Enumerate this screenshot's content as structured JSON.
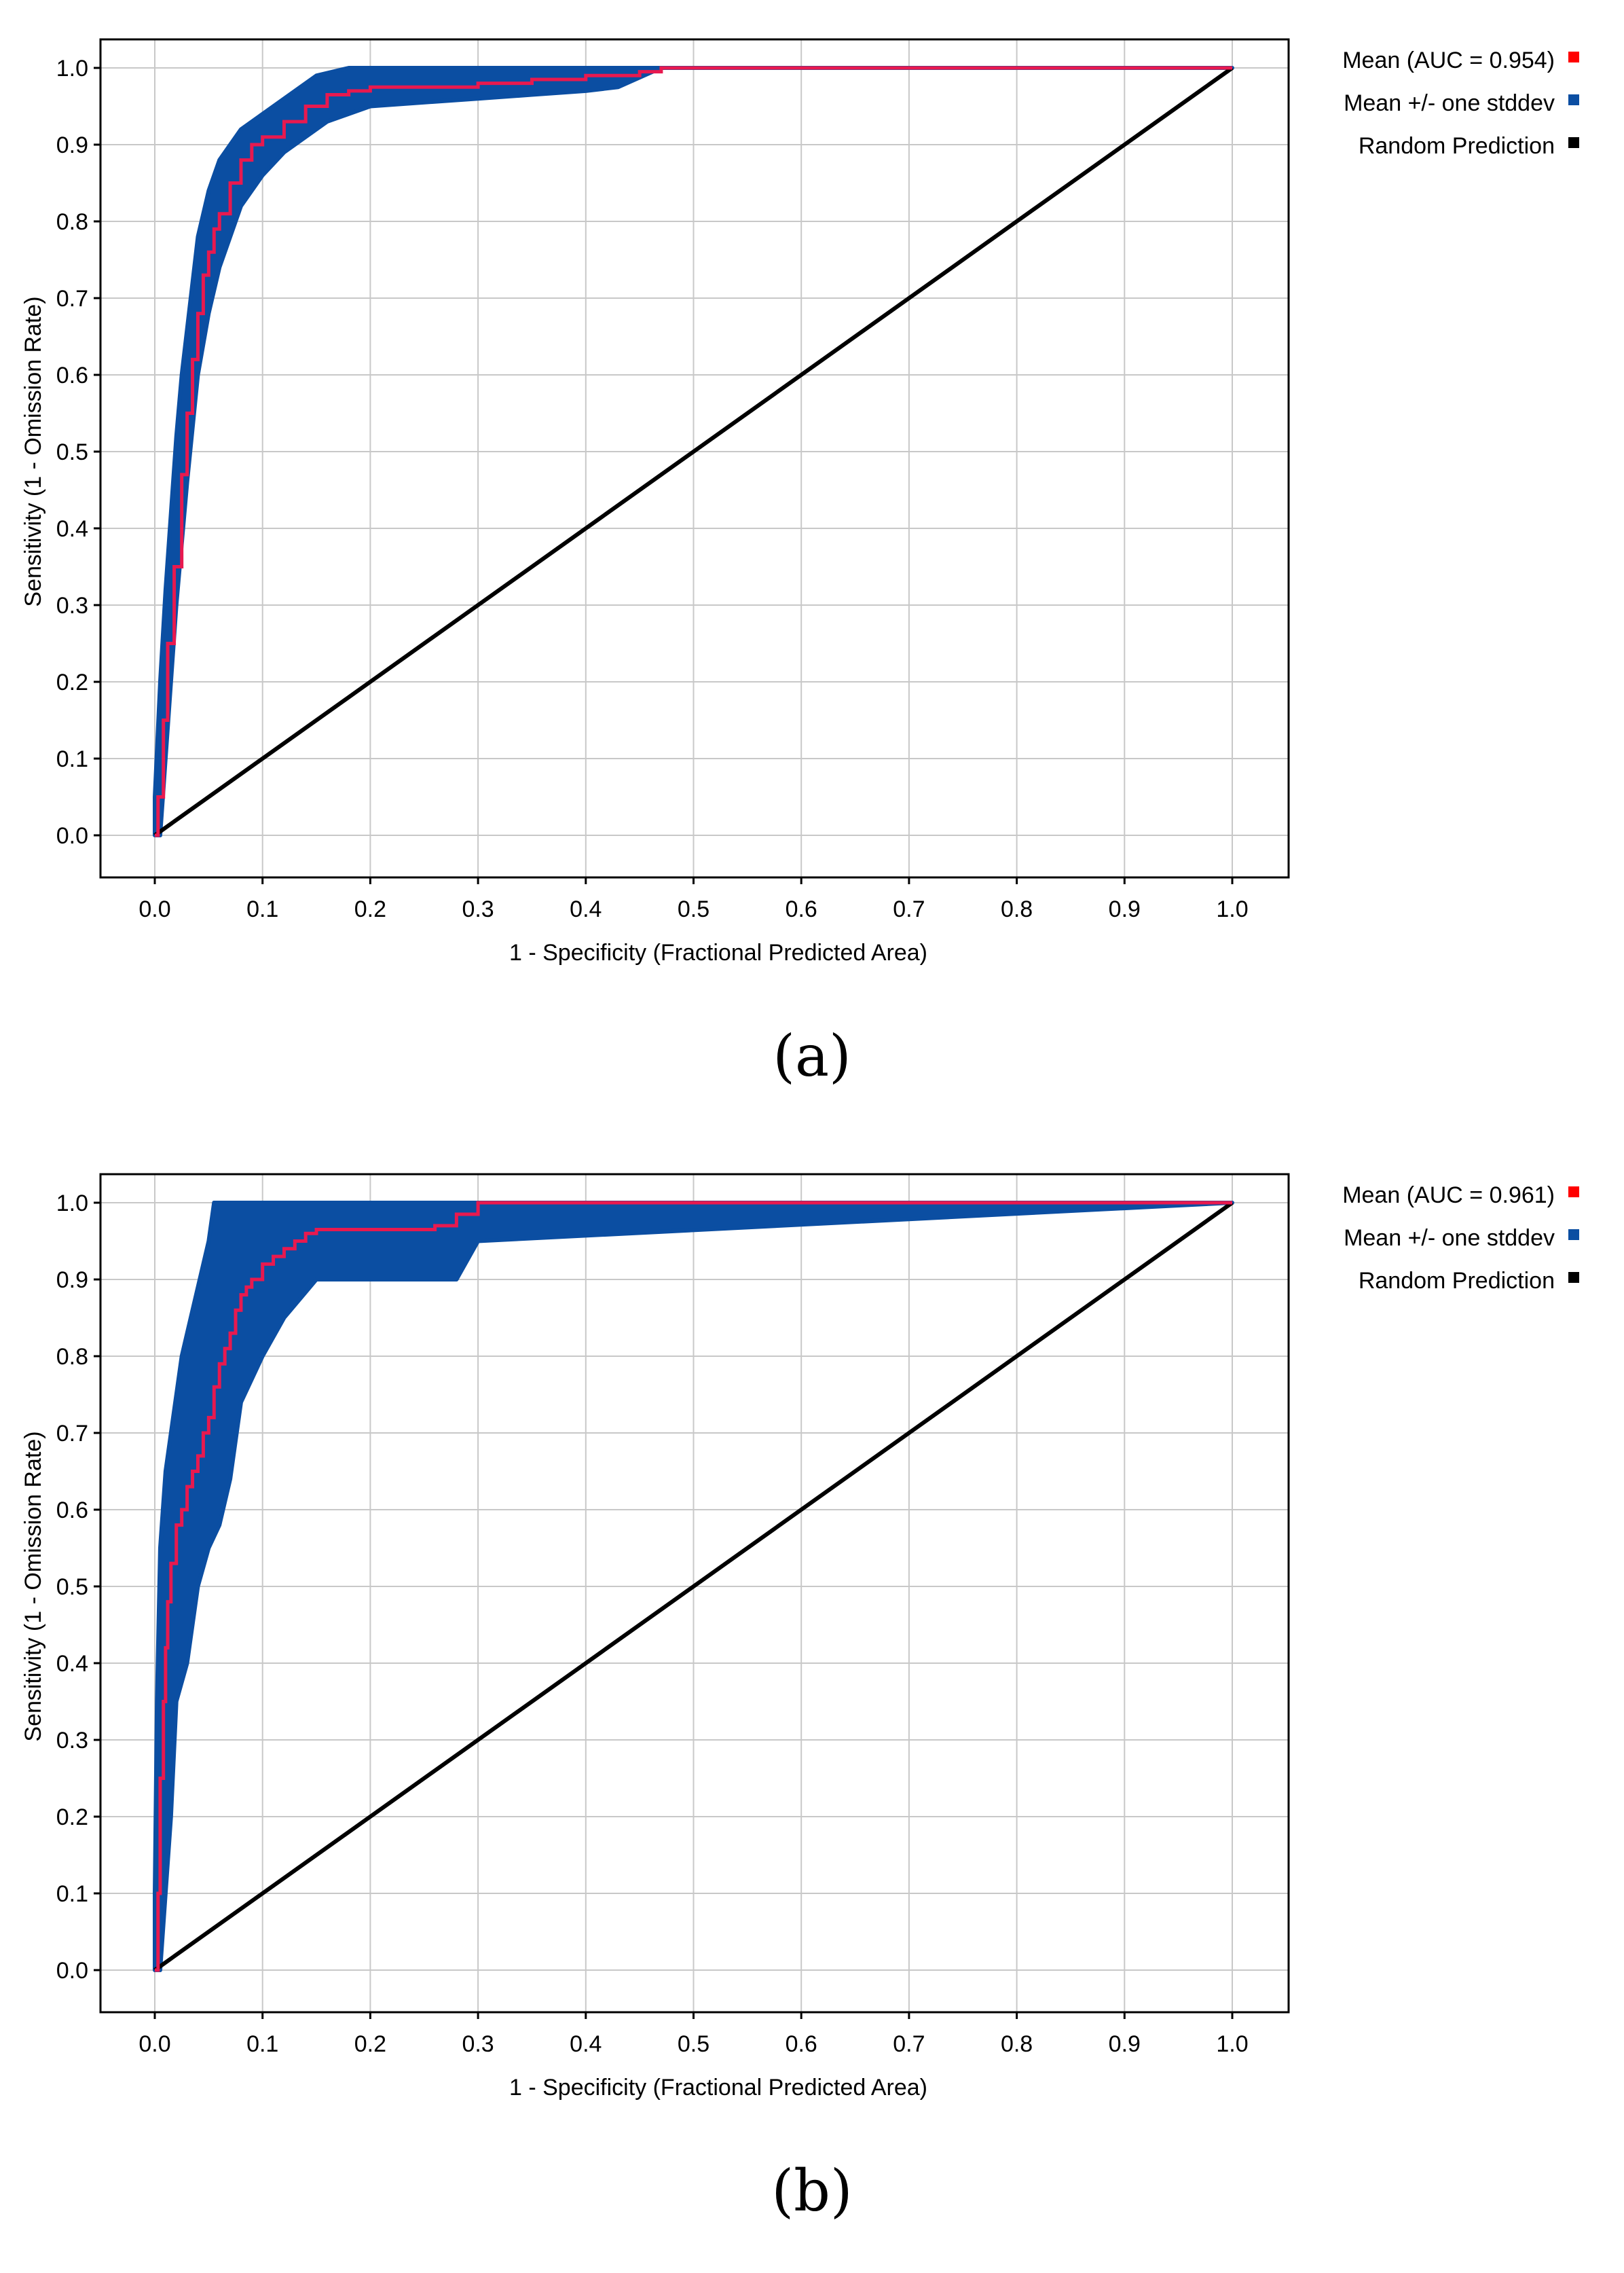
{
  "chart_data": [
    {
      "type": "line",
      "panel_label": "(a)",
      "xlabel": "1 - Specificity (Fractional Predicted Area)",
      "ylabel": "Sensitivity (1 - Omission Rate)",
      "xlim": [
        0,
        1
      ],
      "ylim": [
        0,
        1
      ],
      "x_ticks": [
        "0.0",
        "0.1",
        "0.2",
        "0.3",
        "0.4",
        "0.5",
        "0.6",
        "0.7",
        "0.8",
        "0.9",
        "1.0"
      ],
      "y_ticks": [
        "0.0",
        "0.1",
        "0.2",
        "0.3",
        "0.4",
        "0.5",
        "0.6",
        "0.7",
        "0.8",
        "0.9",
        "1.0"
      ],
      "grid": true,
      "legend_position": "right",
      "legend": [
        {
          "label": "Mean (AUC = 0.954)",
          "color": "#ff0000"
        },
        {
          "label": "Mean +/- one stddev",
          "color": "#0b4ea2"
        },
        {
          "label": "Random Prediction",
          "color": "#000000"
        }
      ],
      "colors": {
        "mean": "#e8194f",
        "band": "#0b4ea2",
        "random": "#000000"
      },
      "series": [
        {
          "name": "Mean (AUC = 0.954)",
          "x": [
            0,
            0.003,
            0.008,
            0.012,
            0.018,
            0.025,
            0.03,
            0.035,
            0.04,
            0.045,
            0.05,
            0.055,
            0.06,
            0.07,
            0.08,
            0.09,
            0.1,
            0.12,
            0.14,
            0.16,
            0.18,
            0.2,
            0.25,
            0.3,
            0.35,
            0.4,
            0.45,
            0.47,
            1.0
          ],
          "y": [
            0,
            0.05,
            0.15,
            0.25,
            0.35,
            0.47,
            0.55,
            0.62,
            0.68,
            0.73,
            0.76,
            0.79,
            0.81,
            0.85,
            0.88,
            0.9,
            0.91,
            0.93,
            0.95,
            0.965,
            0.97,
            0.975,
            0.975,
            0.98,
            0.985,
            0.99,
            0.995,
            1.0,
            1.0
          ]
        },
        {
          "name": "Mean +/- one stddev (upper)",
          "x": [
            0,
            0.005,
            0.01,
            0.015,
            0.02,
            0.025,
            0.03,
            0.035,
            0.04,
            0.05,
            0.06,
            0.07,
            0.08,
            0.1,
            0.12,
            0.15,
            0.18,
            0.47,
            1.0
          ],
          "y": [
            0.05,
            0.2,
            0.32,
            0.42,
            0.52,
            0.6,
            0.66,
            0.72,
            0.78,
            0.84,
            0.88,
            0.9,
            0.92,
            0.94,
            0.96,
            0.99,
            1.0,
            1.0,
            1.0
          ]
        },
        {
          "name": "Mean +/- one stddev (lower)",
          "x": [
            0,
            0.005,
            0.01,
            0.015,
            0.02,
            0.025,
            0.03,
            0.035,
            0.04,
            0.05,
            0.06,
            0.07,
            0.08,
            0.09,
            0.1,
            0.12,
            0.14,
            0.16,
            0.2,
            0.3,
            0.35,
            0.4,
            0.43,
            0.47,
            1.0
          ],
          "y": [
            0,
            0.0,
            0.1,
            0.2,
            0.3,
            0.38,
            0.46,
            0.53,
            0.6,
            0.68,
            0.74,
            0.78,
            0.82,
            0.84,
            0.86,
            0.89,
            0.91,
            0.93,
            0.95,
            0.96,
            0.965,
            0.97,
            0.975,
            1.0,
            1.0
          ]
        },
        {
          "name": "Random Prediction",
          "x": [
            0,
            1
          ],
          "y": [
            0,
            1
          ]
        }
      ]
    },
    {
      "type": "line",
      "panel_label": "(b)",
      "xlabel": "1 - Specificity (Fractional Predicted Area)",
      "ylabel": "Sensitivity (1 - Omission Rate)",
      "xlim": [
        0,
        1
      ],
      "ylim": [
        0,
        1
      ],
      "x_ticks": [
        "0.0",
        "0.1",
        "0.2",
        "0.3",
        "0.4",
        "0.5",
        "0.6",
        "0.7",
        "0.8",
        "0.9",
        "1.0"
      ],
      "y_ticks": [
        "0.0",
        "0.1",
        "0.2",
        "0.3",
        "0.4",
        "0.5",
        "0.6",
        "0.7",
        "0.8",
        "0.9",
        "1.0"
      ],
      "grid": true,
      "legend_position": "right",
      "legend": [
        {
          "label": "Mean (AUC = 0.961)",
          "color": "#ff0000"
        },
        {
          "label": "Mean +/- one stddev",
          "color": "#0b4ea2"
        },
        {
          "label": "Random Prediction",
          "color": "#000000"
        }
      ],
      "colors": {
        "mean": "#e8194f",
        "band": "#0b4ea2",
        "random": "#000000"
      },
      "series": [
        {
          "name": "Mean (AUC = 0.961)",
          "x": [
            0,
            0.003,
            0.005,
            0.008,
            0.01,
            0.012,
            0.015,
            0.02,
            0.025,
            0.03,
            0.035,
            0.04,
            0.045,
            0.05,
            0.055,
            0.06,
            0.065,
            0.07,
            0.075,
            0.08,
            0.085,
            0.09,
            0.1,
            0.11,
            0.12,
            0.13,
            0.14,
            0.15,
            0.16,
            0.2,
            0.26,
            0.28,
            0.3,
            1.0
          ],
          "y": [
            0,
            0.1,
            0.25,
            0.35,
            0.42,
            0.48,
            0.53,
            0.58,
            0.6,
            0.63,
            0.65,
            0.67,
            0.7,
            0.72,
            0.76,
            0.79,
            0.81,
            0.83,
            0.86,
            0.88,
            0.89,
            0.9,
            0.92,
            0.93,
            0.94,
            0.95,
            0.96,
            0.965,
            0.965,
            0.965,
            0.97,
            0.985,
            1.0,
            1.0
          ]
        },
        {
          "name": "Mean +/- one stddev (upper)",
          "x": [
            0,
            0.002,
            0.005,
            0.01,
            0.015,
            0.02,
            0.025,
            0.03,
            0.035,
            0.04,
            0.045,
            0.05,
            0.055,
            0.06,
            0.07,
            0.08,
            0.09,
            0.1,
            0.3,
            1.0
          ],
          "y": [
            0.1,
            0.35,
            0.55,
            0.65,
            0.7,
            0.75,
            0.8,
            0.83,
            0.86,
            0.89,
            0.92,
            0.95,
            1.0,
            1.0,
            1.0,
            1.0,
            1.0,
            1.0,
            1.0,
            1.0
          ]
        },
        {
          "name": "Mean +/- one stddev (lower)",
          "x": [
            0,
            0.005,
            0.01,
            0.015,
            0.02,
            0.03,
            0.035,
            0.04,
            0.05,
            0.06,
            0.07,
            0.08,
            0.1,
            0.12,
            0.15,
            0.18,
            0.25,
            0.28,
            0.3,
            1.0
          ],
          "y": [
            0,
            0.0,
            0.1,
            0.2,
            0.35,
            0.4,
            0.45,
            0.5,
            0.55,
            0.58,
            0.64,
            0.74,
            0.8,
            0.85,
            0.9,
            0.9,
            0.9,
            0.9,
            0.95,
            1.0
          ]
        },
        {
          "name": "Random Prediction",
          "x": [
            0,
            1
          ],
          "y": [
            0,
            1
          ]
        }
      ]
    }
  ]
}
